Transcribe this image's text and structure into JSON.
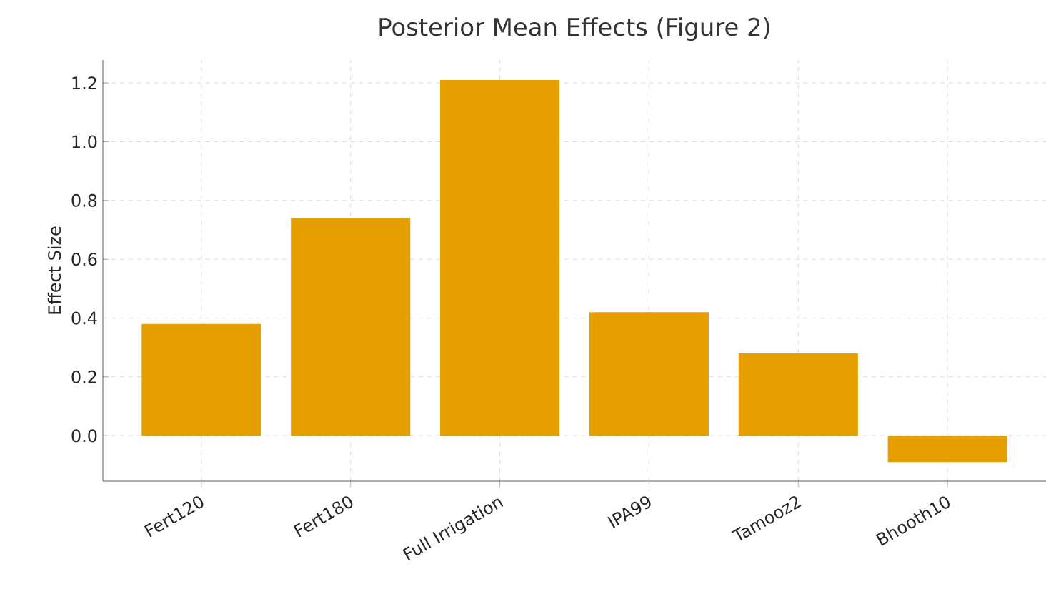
{
  "chart_data": {
    "type": "bar",
    "title": "Posterior Mean Effects (Figure 2)",
    "ylabel": "Effect Size",
    "categories": [
      "Fert120",
      "Fert180",
      "Full Irrigation",
      "IPA99",
      "Tamooz2",
      "Bhooth10"
    ],
    "values": [
      0.38,
      0.74,
      1.21,
      0.42,
      0.28,
      -0.09
    ],
    "color": "#e69f00",
    "ylim": [
      -0.155,
      1.278
    ],
    "yticks": [
      {
        "value": 0,
        "label": "0.0"
      },
      0.2,
      0.4,
      0.6,
      0.8,
      {
        "value": 1,
        "label": "1.0"
      },
      1.2
    ],
    "grid": true
  }
}
